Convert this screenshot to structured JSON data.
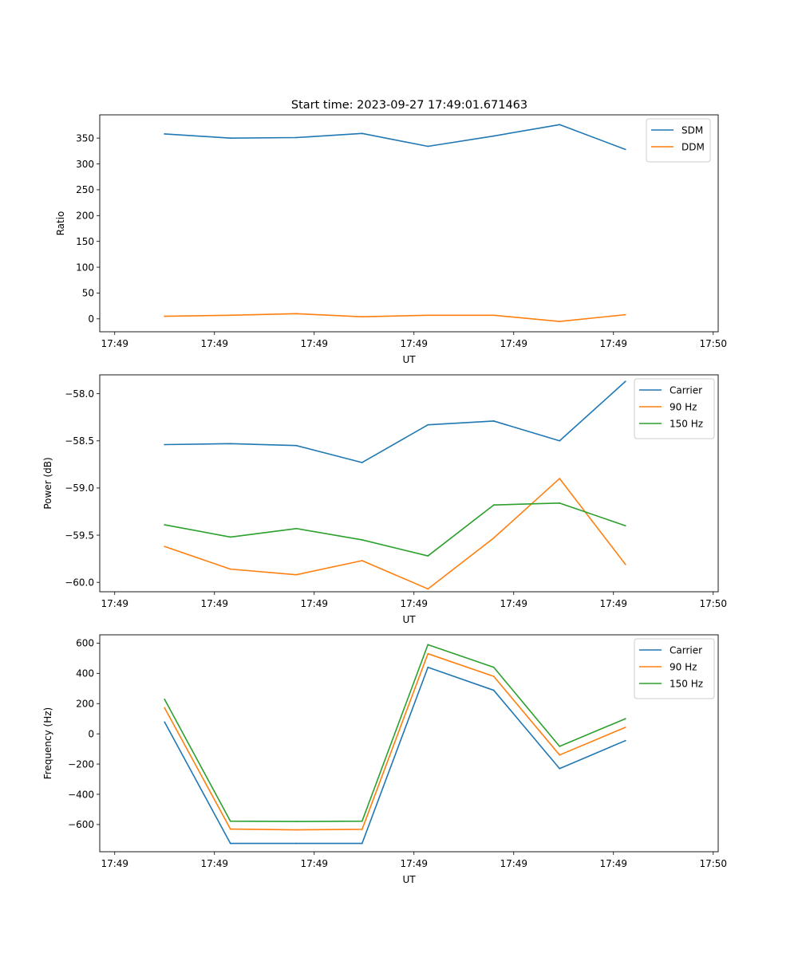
{
  "figure_title": "Start time: 2023-09-27 17:49:01.671463",
  "chart_data": [
    {
      "type": "line",
      "xlabel": "UT",
      "ylabel": "Ratio",
      "x": [
        0.5,
        1.16,
        1.82,
        2.48,
        3.14,
        3.8,
        4.46,
        5.12
      ],
      "xlim": [
        -0.15,
        6.05
      ],
      "xticks": [
        0,
        1,
        2,
        3,
        4,
        5,
        6
      ],
      "xtick_labels": [
        "17:49",
        "17:49",
        "17:49",
        "17:49",
        "17:49",
        "17:49",
        "17:50"
      ],
      "ylim": [
        -25,
        395
      ],
      "yticks": [
        0,
        50,
        100,
        150,
        200,
        250,
        300,
        350
      ],
      "ytick_labels": [
        "0",
        "50",
        "100",
        "150",
        "200",
        "250",
        "300",
        "350"
      ],
      "legend_position": "top-right",
      "series": [
        {
          "name": "SDM",
          "color": "#1f77b4",
          "values": [
            358,
            350,
            351,
            359,
            334,
            354,
            376,
            328
          ]
        },
        {
          "name": "DDM",
          "color": "#ff7f0e",
          "values": [
            5,
            7,
            10,
            4,
            7,
            7,
            -5,
            8
          ]
        }
      ]
    },
    {
      "type": "line",
      "xlabel": "UT",
      "ylabel": "Power (dB)",
      "x": [
        0.5,
        1.16,
        1.82,
        2.48,
        3.14,
        3.8,
        4.46,
        5.12
      ],
      "xlim": [
        -0.15,
        6.05
      ],
      "xticks": [
        0,
        1,
        2,
        3,
        4,
        5,
        6
      ],
      "xtick_labels": [
        "17:49",
        "17:49",
        "17:49",
        "17:49",
        "17:49",
        "17:49",
        "17:50"
      ],
      "ylim": [
        -60.1,
        -57.8
      ],
      "yticks": [
        -60.0,
        -59.5,
        -59.0,
        -58.5,
        -58.0
      ],
      "ytick_labels": [
        "−60.0",
        "−59.5",
        "−59.0",
        "−58.5",
        "−58.0"
      ],
      "legend_position": "top-right",
      "series": [
        {
          "name": "Carrier",
          "color": "#1f77b4",
          "values": [
            -58.54,
            -58.53,
            -58.55,
            -58.73,
            -58.33,
            -58.29,
            -58.5,
            -57.87
          ]
        },
        {
          "name": "90 Hz",
          "color": "#ff7f0e",
          "values": [
            -59.62,
            -59.86,
            -59.92,
            -59.77,
            -60.07,
            -59.53,
            -58.9,
            -59.81
          ]
        },
        {
          "name": "150 Hz",
          "color": "#2ca02c",
          "values": [
            -59.39,
            -59.52,
            -59.43,
            -59.55,
            -59.72,
            -59.18,
            -59.16,
            -59.4
          ]
        }
      ]
    },
    {
      "type": "line",
      "xlabel": "UT",
      "ylabel": "Frequency (Hz)",
      "x": [
        0.5,
        1.16,
        1.82,
        2.48,
        3.14,
        3.8,
        4.46,
        5.12
      ],
      "xlim": [
        -0.15,
        6.05
      ],
      "xticks": [
        0,
        1,
        2,
        3,
        4,
        5,
        6
      ],
      "xtick_labels": [
        "17:49",
        "17:49",
        "17:49",
        "17:49",
        "17:49",
        "17:49",
        "17:50"
      ],
      "ylim": [
        -780,
        655
      ],
      "yticks": [
        -600,
        -400,
        -200,
        0,
        200,
        400,
        600
      ],
      "ytick_labels": [
        "−600",
        "−400",
        "−200",
        "0",
        "200",
        "400",
        "600"
      ],
      "legend_position": "top-right",
      "series": [
        {
          "name": "Carrier",
          "color": "#1f77b4",
          "values": [
            78,
            -725,
            -725,
            -725,
            440,
            288,
            -230,
            -45
          ]
        },
        {
          "name": "90 Hz",
          "color": "#ff7f0e",
          "values": [
            172,
            -630,
            -635,
            -632,
            530,
            380,
            -140,
            43
          ]
        },
        {
          "name": "150 Hz",
          "color": "#2ca02c",
          "values": [
            228,
            -578,
            -580,
            -578,
            590,
            440,
            -83,
            100
          ]
        }
      ]
    }
  ]
}
